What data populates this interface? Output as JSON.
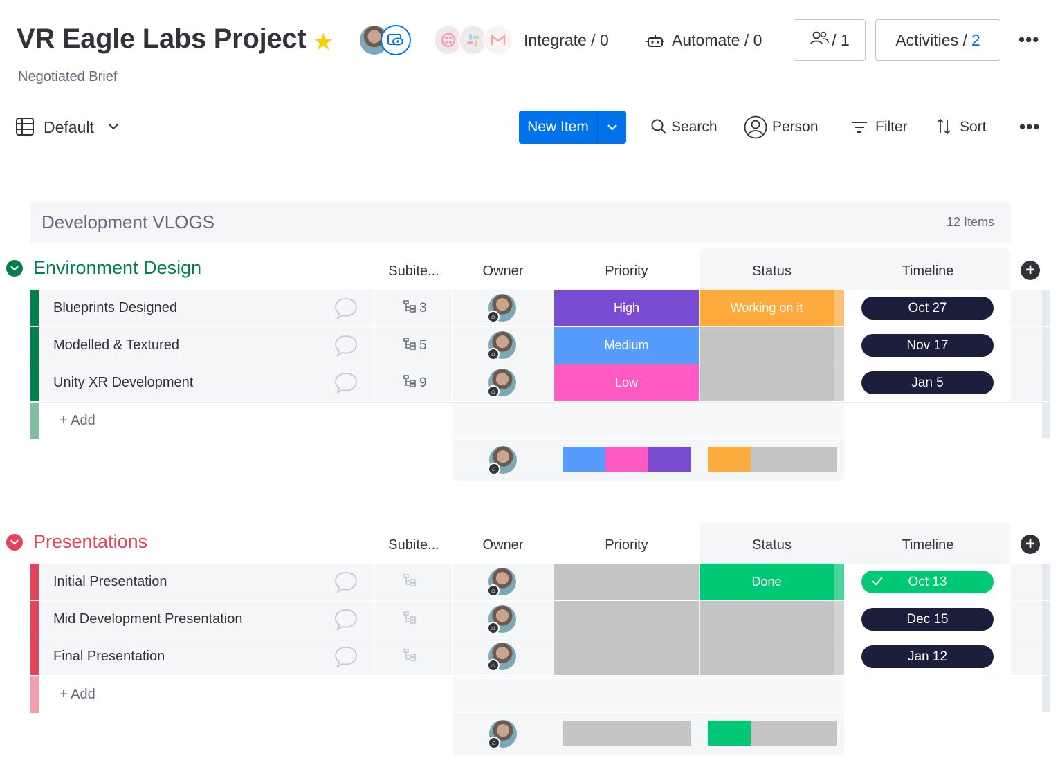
{
  "header": {
    "title": "VR Eagle Labs Project",
    "subtitle": "Negotiated Brief",
    "integrate_label": "Integrate / 0",
    "automate_label": "Automate / 0",
    "members_count": "/ 1",
    "activities_label": "Activities /",
    "activities_count": "2"
  },
  "toolbar": {
    "view_label": "Default",
    "new_item_label": "New Item",
    "search_label": "Search",
    "person_label": "Person",
    "filter_label": "Filter",
    "sort_label": "Sort"
  },
  "board_group": {
    "title": "Development VLOGS",
    "count": "12 Items"
  },
  "columns": {
    "subitems": "Subite...",
    "owner": "Owner",
    "priority": "Priority",
    "status": "Status",
    "timeline": "Timeline"
  },
  "groups": [
    {
      "title": "Environment Design",
      "color": "#037f4c",
      "add_label": "+ Add",
      "rows": [
        {
          "name": "Blueprints Designed",
          "subitems": "3",
          "priority": "High",
          "priority_color": "#784bd1",
          "status": "Working on it",
          "status_color": "#fdab3d",
          "timeline": "Oct 27"
        },
        {
          "name": "Modelled & Textured",
          "subitems": "5",
          "priority": "Medium",
          "priority_color": "#579bfc",
          "status": "",
          "status_color": "#c4c4c4",
          "timeline": "Nov 17"
        },
        {
          "name": "Unity XR Development",
          "subitems": "9",
          "priority": "Low",
          "priority_color": "#ff5ac4",
          "status": "",
          "status_color": "#c4c4c4",
          "timeline": "Jan 5"
        }
      ],
      "priority_summary_colors": [
        "#579bfc",
        "#ff5ac4",
        "#784bd1"
      ],
      "status_summary": {
        "done_color": "#fdab3d",
        "done_fraction": 0.333,
        "rest_color": "#c4c4c4"
      }
    },
    {
      "title": "Presentations",
      "color": "#e2445c",
      "add_label": "+ Add",
      "rows": [
        {
          "name": "Initial Presentation",
          "subitems": "",
          "priority": "",
          "priority_color": "#c4c4c4",
          "status": "Done",
          "status_color": "#00c875",
          "timeline": "Oct 13"
        },
        {
          "name": "Mid Development Presentation",
          "subitems": "",
          "priority": "",
          "priority_color": "#c4c4c4",
          "status": "",
          "status_color": "#c4c4c4",
          "timeline": "Dec 15"
        },
        {
          "name": "Final Presentation",
          "subitems": "",
          "priority": "",
          "priority_color": "#c4c4c4",
          "status": "",
          "status_color": "#c4c4c4",
          "timeline": "Jan 12"
        }
      ],
      "priority_summary_colors": [
        "#c4c4c4"
      ],
      "status_summary": {
        "done_color": "#00c875",
        "done_fraction": 0.333,
        "rest_color": "#c4c4c4"
      }
    }
  ],
  "colors": {
    "accent": "#0073ea",
    "timeline_dark": "#1c1f3b",
    "timeline_done": "#00c875",
    "star": "#ffcb00"
  }
}
